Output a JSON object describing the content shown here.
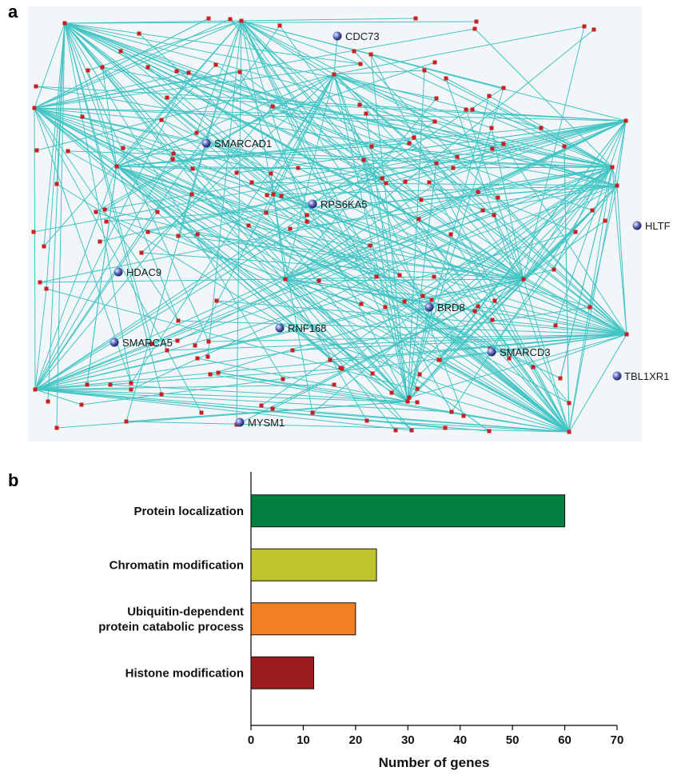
{
  "panel_a": {
    "letter": "a",
    "hub_nodes": [
      "CDC73",
      "SMARCAD1",
      "RPS6KA5",
      "HLTF",
      "HDAC9",
      "BRD8",
      "RNF168",
      "SMARCA5",
      "SMARCD3",
      "TBL1XR1",
      "MYSM1"
    ]
  },
  "panel_b": {
    "letter": "b"
  },
  "colors": {
    "network_background": "#f2f6f8",
    "edge": "#2fbfbf",
    "gene_node": "#cc1f1f",
    "hub_node": "#5a66b8"
  },
  "chart_data": {
    "type": "bar",
    "orientation": "horizontal",
    "categories": [
      "Protein localization",
      "Chromatin modification",
      "Ubiquitin-dependent protein catabolic process",
      "Histone modification"
    ],
    "category_lines": [
      [
        "Protein localization"
      ],
      [
        "Chromatin modification"
      ],
      [
        "Ubiquitin-dependent",
        "protein catabolic process"
      ],
      [
        "Histone modification"
      ]
    ],
    "values": [
      60,
      24,
      20,
      12
    ],
    "colors": [
      "#007f3f",
      "#bfc42e",
      "#f08022",
      "#991c1f"
    ],
    "xlabel": "Number of genes",
    "ylabel": "",
    "xlim": [
      0,
      70
    ],
    "xticks": [
      "0",
      "10",
      "20",
      "30",
      "40",
      "50",
      "60",
      "70"
    ],
    "grid": false,
    "legend": "none"
  }
}
